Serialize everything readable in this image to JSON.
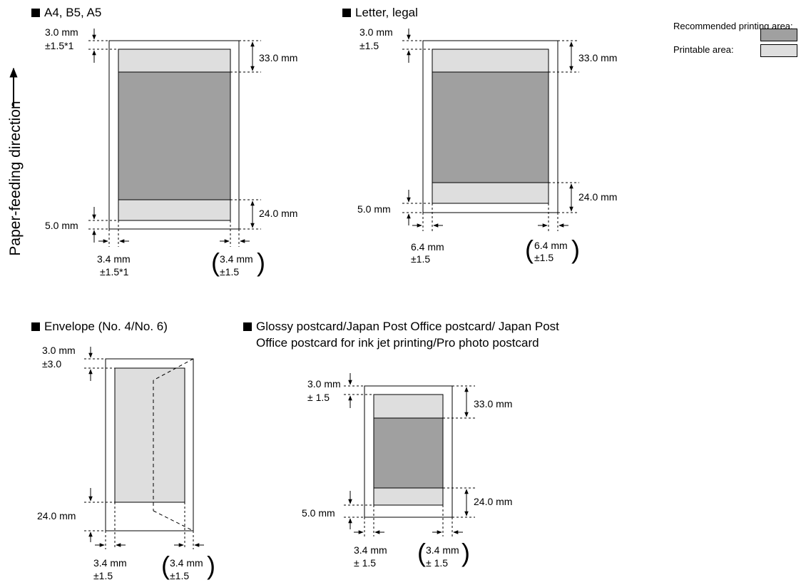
{
  "legend": {
    "recommended": "Recommended printing area:",
    "printable": "Printable area:",
    "recommended_color": "#a0a0a0",
    "printable_color": "#dedede"
  },
  "feed_direction_label": "Paper-feeding direction",
  "sections": {
    "a4": {
      "title": "A4, B5, A5",
      "top_margin": "3.0 mm",
      "top_tol": "±1.5*1",
      "top_zone": "33.0 mm",
      "bottom_margin": "5.0 mm",
      "bottom_zone": "24.0 mm",
      "left_margin": "3.4 mm",
      "left_tol": "±1.5*1",
      "right_margin": "3.4 mm",
      "right_tol": "±1.5"
    },
    "letter": {
      "title": "Letter, legal",
      "top_margin": "3.0 mm",
      "top_tol": "±1.5",
      "top_zone": "33.0 mm",
      "bottom_margin": "5.0 mm",
      "bottom_zone": "24.0 mm",
      "left_margin": "6.4 mm",
      "left_tol": "±1.5",
      "right_margin": "6.4 mm",
      "right_tol": "±1.5"
    },
    "envelope": {
      "title": "Envelope (No. 4/No. 6)",
      "top_margin": "3.0 mm",
      "top_tol": "±3.0",
      "bottom_margin": "24.0 mm",
      "left_margin": "3.4 mm",
      "left_tol": "±1.5",
      "right_margin": "3.4 mm",
      "right_tol": "±1.5"
    },
    "postcard": {
      "title_line1": "Glossy postcard/Japan Post Office postcard/ Japan Post",
      "title_line2": "Office postcard for ink jet printing/Pro photo postcard",
      "top_margin": "3.0 mm",
      "top_tol": "± 1.5",
      "top_zone": "33.0 mm",
      "bottom_margin": "5.0 mm",
      "bottom_zone": "24.0 mm",
      "left_margin": "3.4 mm",
      "left_tol": "± 1.5",
      "right_margin": "3.4 mm",
      "right_tol": "± 1.5"
    }
  }
}
